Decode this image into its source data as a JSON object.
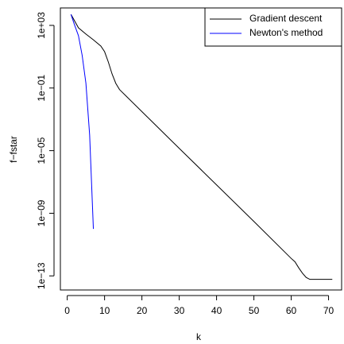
{
  "chart_data": {
    "type": "line",
    "x_label": "k",
    "y_label": "f−fstar",
    "log_y": true,
    "xlim": [
      -1.84,
      73.5
    ],
    "ylim": [
      1.26e-14,
      13000
    ],
    "xticks": [
      0,
      10,
      20,
      30,
      40,
      50,
      60,
      70
    ],
    "yticks": [
      {
        "value": 1000,
        "label": "1e+03"
      },
      {
        "value": 0.1,
        "label": "1e−01"
      },
      {
        "value": 1e-05,
        "label": "1e−05"
      },
      {
        "value": 1e-09,
        "label": "1e−09"
      },
      {
        "value": 1e-13,
        "label": "1e−13"
      }
    ],
    "legend_position": "top-right",
    "series": [
      {
        "name": "Gradient descent",
        "color": "#000000",
        "x": [
          1,
          3,
          5,
          7,
          9,
          10,
          11,
          12,
          13,
          14,
          16,
          20,
          30,
          40,
          50,
          60,
          61,
          62,
          63,
          64,
          65,
          71
        ],
        "values": [
          5000,
          700,
          280,
          120,
          48,
          21,
          4.6,
          0.8,
          0.2,
          0.08,
          0.027,
          0.0031,
          1.4e-05,
          6.5e-08,
          3e-10,
          1.3e-12,
          8e-13,
          3.3e-13,
          1.5e-13,
          8e-14,
          6e-14,
          6e-14
        ]
      },
      {
        "name": "Newton's method",
        "color": "#0000ff",
        "x": [
          1,
          2,
          3,
          4,
          5,
          6,
          7
        ],
        "values": [
          5000,
          1000,
          220,
          12,
          0.2,
          0.0001,
          1e-10
        ]
      }
    ]
  }
}
